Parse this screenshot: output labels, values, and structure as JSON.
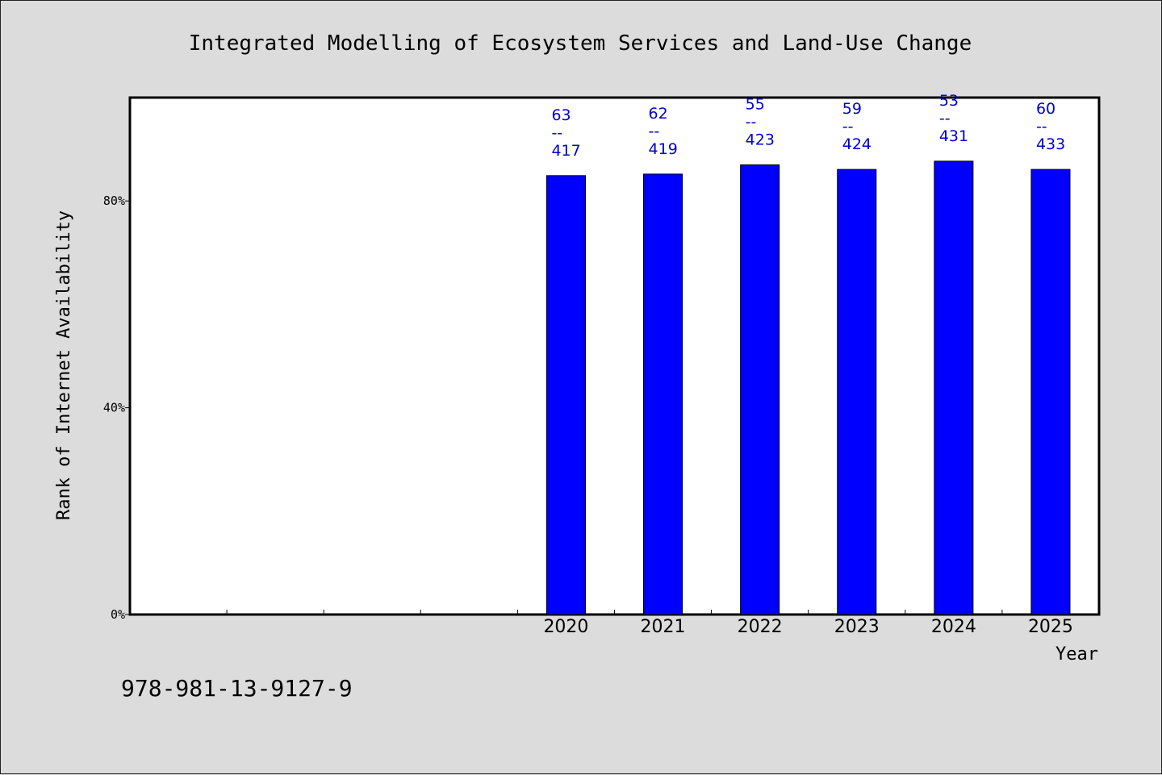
{
  "chart_data": {
    "type": "bar",
    "title": "Integrated Modelling of Ecosystem Services and Land-Use Change",
    "xlabel": "Year",
    "ylabel": "Rank of Internet Availability",
    "categories": [
      "2020",
      "2021",
      "2022",
      "2023",
      "2024",
      "2025"
    ],
    "leading_empty_slots": 4,
    "values": [
      0.849,
      0.852,
      0.87,
      0.861,
      0.877,
      0.861
    ],
    "value_labels": [
      {
        "rank": "63",
        "sep": "--",
        "total": "417"
      },
      {
        "rank": "62",
        "sep": "--",
        "total": "419"
      },
      {
        "rank": "55",
        "sep": "--",
        "total": "423"
      },
      {
        "rank": "59",
        "sep": "--",
        "total": "424"
      },
      {
        "rank": "53",
        "sep": "--",
        "total": "431"
      },
      {
        "rank": "60",
        "sep": "--",
        "total": "433"
      }
    ],
    "yticks": [
      {
        "value": 0,
        "label": "0%"
      },
      {
        "value": 0.4,
        "label": "40%"
      },
      {
        "value": 0.8,
        "label": "80%"
      }
    ],
    "ylim": [
      0,
      1.0
    ],
    "bar_color": "#0000ff",
    "label_color": "#0000cc",
    "grid": false,
    "legend": "none"
  },
  "footer": {
    "isbn": "978-981-13-9127-9"
  }
}
